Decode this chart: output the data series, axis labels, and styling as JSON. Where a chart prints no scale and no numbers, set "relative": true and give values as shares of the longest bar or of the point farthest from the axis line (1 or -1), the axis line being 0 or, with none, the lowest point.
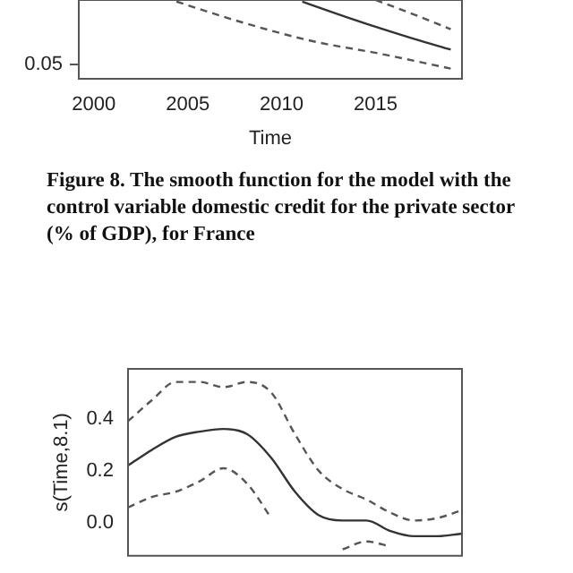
{
  "chart_data": [
    {
      "type": "line",
      "relative": true,
      "xlabel": "Time",
      "xlim": [
        1999.2,
        2019.6
      ],
      "xticks": [
        2000,
        2005,
        2010,
        2015
      ],
      "legend": false,
      "marker": "none",
      "annotations": [
        "Figure 8. The smooth function for the model with the control variable domestic credit for the private sector (% of GDP), for France",
        "0.05"
      ],
      "series": [
        {
          "color": "#333333",
          "line_style": "solid",
          "x": [
            2011.1,
            2013,
            2015,
            2017,
            2019
          ],
          "values": [
            0.98,
            0.82,
            0.66,
            0.51,
            0.37
          ]
        },
        {
          "color": "#555555",
          "line_style": "dashed",
          "x": [
            2015,
            2017,
            2019
          ],
          "values": [
            1,
            0.82,
            0.63
          ]
        },
        {
          "color": "#555555",
          "line_style": "dashed",
          "x": [
            2004.4,
            2007.7,
            2011.6,
            2015.2,
            2019
          ],
          "values": [
            0.98,
            0.73,
            0.48,
            0.32,
            0.13
          ]
        }
      ]
    },
    {
      "type": "line",
      "ylabel": "s(Time,8.1)",
      "categories": [
        null,
        null,
        null,
        null,
        null,
        null,
        null,
        null,
        null,
        null,
        null,
        null,
        null,
        null,
        null
      ],
      "ylim": [
        -0.125,
        0.59
      ],
      "yticks": [
        {
          "value": 0,
          "label": "0.0"
        },
        0.2,
        0.4
      ],
      "tick_labels": "y",
      "legend": false,
      "marker": "none",
      "series": [
        {
          "color": "#333333",
          "line_style": "solid",
          "values": [
            0.22,
            0.28,
            0.33,
            0.35,
            0.36,
            0.34,
            0.25,
            0.12,
            0.03,
            0.01,
            0.01,
            -0.03,
            -0.05,
            -0.05,
            -0.04
          ]
        },
        {
          "color": "#555555",
          "line_style": "dashed",
          "values": [
            0.39,
            0.47,
            0.54,
            0.54,
            0.52,
            0.54,
            0.5,
            0.34,
            0.2,
            0.13,
            0.09,
            0.04,
            0.01,
            0.02,
            0.05
          ]
        },
        {
          "color": "#555555",
          "line_style": "dashed",
          "values": [
            0.06,
            0.1,
            0.12,
            0.16,
            0.21,
            0.15,
            0.02,
            null,
            null,
            -0.1,
            -0.07,
            -0.09,
            null,
            null,
            null
          ]
        }
      ]
    }
  ]
}
